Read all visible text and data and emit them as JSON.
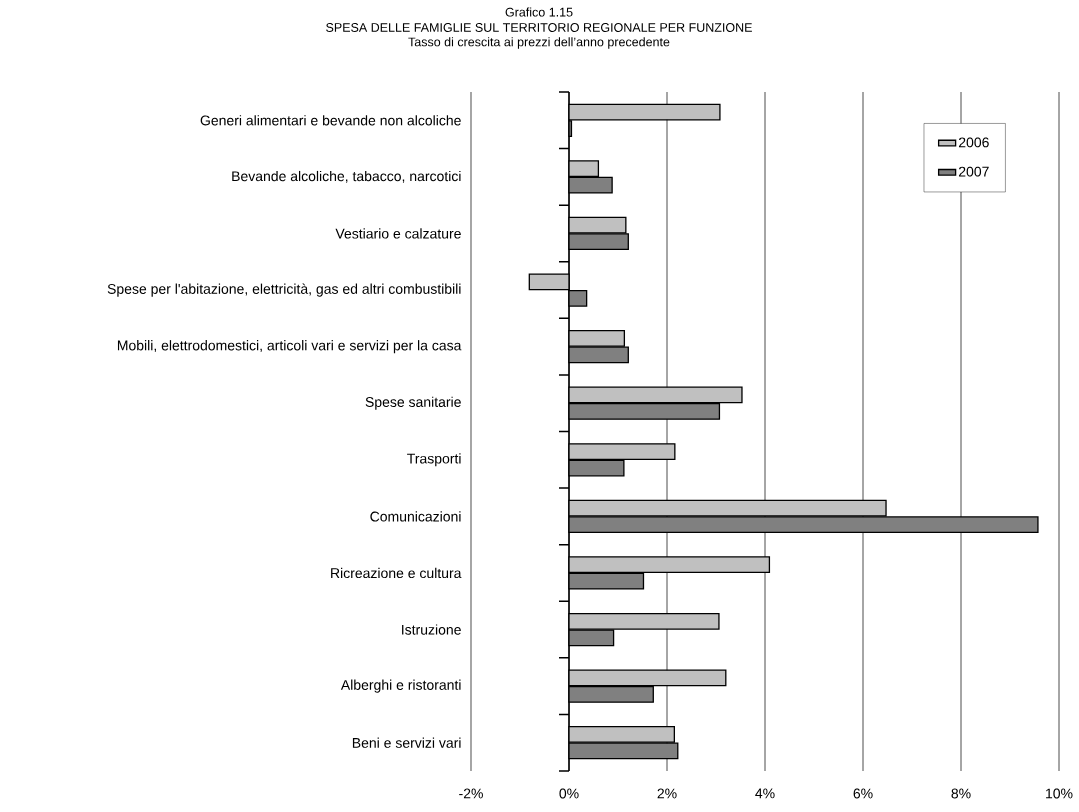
{
  "chart_data": {
    "type": "bar",
    "orientation": "horizontal",
    "title": "SPESA DELLE FAMIGLIE SUL TERRITORIO REGIONALE PER FUNZIONE",
    "subtitle": "Tasso di crescita ai prezzi dell’anno precedente",
    "annotations": [
      "Grafico 1.15"
    ],
    "categories": [
      "Generi alimentari e bevande non alcoliche",
      "Bevande alcoliche, tabacco, narcotici",
      "Vestiario e calzature",
      "Spese per l'abitazione, elettricità, gas ed altri combustibili",
      "Mobili, elettrodomestici, articoli vari e servizi per la casa",
      "Spese sanitarie",
      "Trasporti",
      "Comunicazioni",
      "Ricreazione e cultura",
      "Istruzione",
      "Alberghi e ristoranti",
      "Beni e servizi vari"
    ],
    "series": [
      {
        "name": "2006",
        "color": "#c0c0c0",
        "values": [
          3.08,
          0.6,
          1.16,
          -0.81,
          1.13,
          3.53,
          2.16,
          6.47,
          4.09,
          3.06,
          3.2,
          2.15
        ]
      },
      {
        "name": "2007",
        "color": "#808080",
        "values": [
          0.05,
          0.88,
          1.21,
          0.36,
          1.21,
          3.07,
          1.12,
          9.57,
          1.52,
          0.91,
          1.72,
          2.22
        ]
      }
    ],
    "xlim": [
      -2,
      10
    ],
    "xticks": [
      {
        "value": -2,
        "label": "-2%"
      },
      {
        "value": 0,
        "label": "0%"
      },
      {
        "value": 2,
        "label": "2%"
      },
      {
        "value": 4,
        "label": "4%"
      },
      {
        "value": 6,
        "label": "6%"
      },
      {
        "value": 8,
        "label": "8%"
      },
      {
        "value": 10,
        "label": "10%"
      }
    ],
    "grid": "x",
    "legend": "top right"
  }
}
